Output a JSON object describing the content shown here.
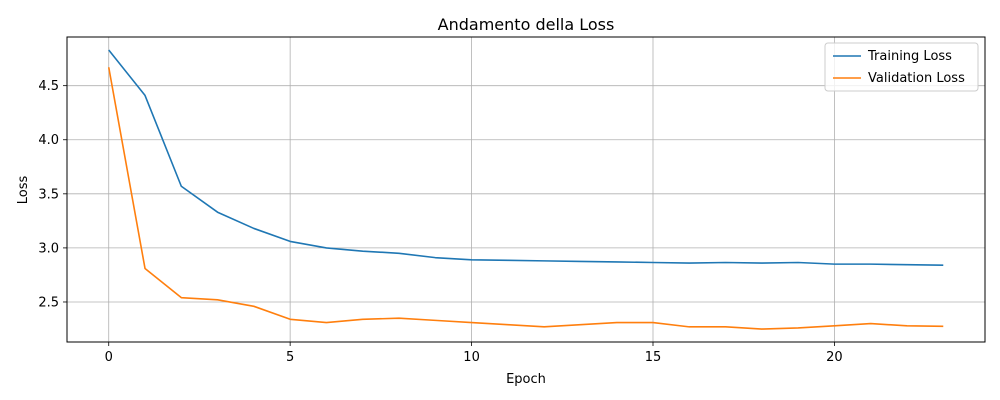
{
  "chart_data": {
    "type": "line",
    "title": "Andamento della Loss",
    "xlabel": "Epoch",
    "ylabel": "Loss",
    "xlim": [
      -1.15,
      24.15
    ],
    "ylim": [
      2.13,
      4.95
    ],
    "xticks": [
      0,
      5,
      10,
      15,
      20
    ],
    "yticks": [
      2.5,
      3.0,
      3.5,
      4.0,
      4.5
    ],
    "xtick_labels": [
      "0",
      "5",
      "10",
      "15",
      "20"
    ],
    "ytick_labels": [
      "2.5",
      "3.0",
      "3.5",
      "4.0",
      "4.5"
    ],
    "grid": true,
    "legend_position": "upper right",
    "x": [
      0,
      1,
      2,
      3,
      4,
      5,
      6,
      7,
      8,
      9,
      10,
      11,
      12,
      13,
      14,
      15,
      16,
      17,
      18,
      19,
      20,
      21,
      22,
      23
    ],
    "series": [
      {
        "name": "Training Loss",
        "color": "#1f77b4",
        "values": [
          4.83,
          4.41,
          3.57,
          3.33,
          3.18,
          3.06,
          3.0,
          2.97,
          2.95,
          2.91,
          2.89,
          2.885,
          2.88,
          2.875,
          2.87,
          2.865,
          2.86,
          2.865,
          2.86,
          2.865,
          2.85,
          2.85,
          2.845,
          2.84
        ]
      },
      {
        "name": "Validation Loss",
        "color": "#ff7f0e",
        "values": [
          4.67,
          2.81,
          2.54,
          2.52,
          2.46,
          2.34,
          2.31,
          2.34,
          2.35,
          2.33,
          2.31,
          2.29,
          2.27,
          2.29,
          2.31,
          2.31,
          2.27,
          2.27,
          2.25,
          2.26,
          2.28,
          2.3,
          2.28,
          2.275
        ]
      }
    ]
  }
}
